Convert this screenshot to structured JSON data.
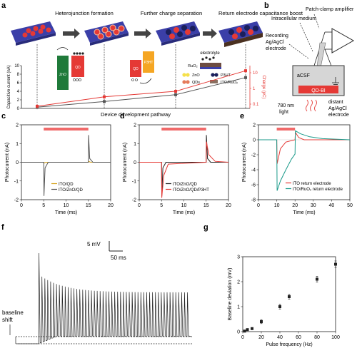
{
  "panel_labels": [
    "a",
    "b",
    "c",
    "d",
    "e",
    "f",
    "g"
  ],
  "a": {
    "stages": [
      "Heterojunction formation",
      "Further charge separation",
      "Return electrode capacitance boost"
    ],
    "materials": {
      "zno": "ZnO",
      "qd": "QD",
      "p3ht": "P3HT",
      "ruo2": "RuO₂",
      "electrolyte": "electrolyte"
    },
    "legend": [
      "ZnO",
      "QDs",
      "P3HT",
      "ITO/RuO₂"
    ],
    "colors": {
      "zno": "#1f7a3a",
      "qd": "#e53935",
      "p3ht": "#f5a623",
      "substrate": "#3b3fa8"
    },
    "chart_data": {
      "type": "line",
      "xlabel": "Device development pathway",
      "ylabel": "Capacitive current (nA)",
      "y2label": "Charge (pC)",
      "ylim": [
        0,
        10
      ],
      "y2ticks": [
        "0.1",
        "1",
        "10"
      ],
      "series": [
        {
          "values": [
            0.3,
            1.6,
            3.2,
            7.2
          ]
        },
        {
          "values": [
            0.5,
            2.7,
            4.0,
            8.8
          ]
        }
      ],
      "yticks": [
        0,
        2,
        4,
        6,
        8,
        10
      ]
    }
  },
  "b": {
    "labels": {
      "patch": "Patch-clamp amplifier",
      "intra": "Intracellular medium",
      "rec1": "Recording",
      "rec2": "Ag/AgCl",
      "rec3": "electrode",
      "acsf": "aCSF",
      "qdbi": "QD-BI",
      "light1": "780 nm",
      "light2": "light",
      "dist1": "distant",
      "dist2": "Ag/AgCl",
      "dist3": "electrode"
    }
  },
  "chart_data": [
    {
      "panel": "c",
      "type": "line",
      "xlabel": "Time (ms)",
      "ylabel": "Photocurrent (nA)",
      "xlim": [
        0,
        20
      ],
      "ylim": [
        -2,
        2
      ],
      "xticks": [
        0,
        5,
        10,
        15,
        20
      ],
      "yticks": [
        -2,
        -1,
        0,
        1,
        2
      ],
      "series": [
        {
          "name": "ITO/QD",
          "color": "#d4a017",
          "x": [
            0,
            5,
            5.05,
            5.5,
            15,
            15.05,
            15.5,
            20
          ],
          "y": [
            0,
            0,
            -0.05,
            0,
            0,
            0.05,
            0,
            0
          ]
        },
        {
          "name": "ITO/ZnO/QD",
          "color": "#555555",
          "x": [
            0,
            5,
            5.05,
            5.3,
            6,
            15,
            15.05,
            15.3,
            16,
            20
          ],
          "y": [
            0,
            0,
            -1.8,
            -0.3,
            0,
            0,
            1.45,
            0.2,
            0,
            0
          ]
        }
      ]
    },
    {
      "panel": "d",
      "type": "line",
      "xlabel": "Time (ms)",
      "ylabel": "Photocurrent (nA)",
      "xlim": [
        0,
        20
      ],
      "ylim": [
        -2,
        2
      ],
      "xticks": [
        0,
        5,
        10,
        15,
        20
      ],
      "yticks": [
        -2,
        -1,
        0,
        1,
        2
      ],
      "series": [
        {
          "name": "ITO/ZnO/QD",
          "color": "#222222",
          "x": [
            0,
            5,
            5.05,
            5.3,
            6,
            15,
            15.05,
            15.3,
            16,
            20
          ],
          "y": [
            0,
            0,
            -1.8,
            -0.3,
            0,
            0,
            1.45,
            0.2,
            0,
            0
          ]
        },
        {
          "name": "ITO/ZnO/QD/P3HT",
          "color": "#e53935",
          "x": [
            0,
            5,
            5.05,
            5.5,
            6.5,
            15,
            15.05,
            15.6,
            17,
            20
          ],
          "y": [
            0,
            0,
            -1.9,
            -0.7,
            -0.1,
            0,
            1.1,
            0.4,
            0.05,
            0
          ]
        }
      ]
    },
    {
      "panel": "e",
      "type": "line",
      "xlabel": "Time (ms)",
      "ylabel": "Photocurrent (nA)",
      "xlim": [
        0,
        50
      ],
      "ylim": [
        -8,
        2
      ],
      "xticks": [
        0,
        10,
        20,
        30,
        40,
        50
      ],
      "yticks": [
        -8,
        -6,
        -4,
        -2,
        0,
        2
      ],
      "series": [
        {
          "name": "ITO return electrode",
          "color": "#e53935",
          "x": [
            0,
            10,
            10.2,
            12,
            15,
            20,
            20.2,
            22,
            25,
            50
          ],
          "y": [
            0,
            0,
            -3.2,
            -1.2,
            -0.3,
            0,
            1.0,
            0.3,
            0,
            0
          ]
        },
        {
          "name": "ITO/RuO₂ return electrode",
          "color": "#1a9a8a",
          "x": [
            0,
            10,
            10.2,
            12,
            15,
            18,
            20,
            20.2,
            23,
            28,
            35,
            50
          ],
          "y": [
            0,
            0,
            -6.8,
            -5.5,
            -4.0,
            -2.6,
            -1.9,
            1.2,
            0.8,
            0.4,
            0.15,
            0
          ]
        }
      ]
    },
    {
      "panel": "g",
      "type": "scatter",
      "xlabel": "Pulse frequency (Hz)",
      "ylabel": "Baseline deviation (mV)",
      "xlim": [
        0,
        100
      ],
      "ylim": [
        0,
        3
      ],
      "xticks": [
        0,
        20,
        40,
        60,
        80,
        100
      ],
      "yticks": [
        0,
        1,
        2,
        3
      ],
      "x": [
        2,
        5,
        10,
        20,
        40,
        50,
        80,
        100
      ],
      "y": [
        0.02,
        0.08,
        0.12,
        0.4,
        1.0,
        1.4,
        2.1,
        2.7
      ],
      "err": [
        0.03,
        0.03,
        0.04,
        0.08,
        0.1,
        0.1,
        0.12,
        0.13
      ]
    }
  ],
  "f": {
    "scale_mv": "5 mV",
    "scale_ms": "50 ms",
    "baseline": "baseline",
    "shift": "shift",
    "spikes": 52
  }
}
